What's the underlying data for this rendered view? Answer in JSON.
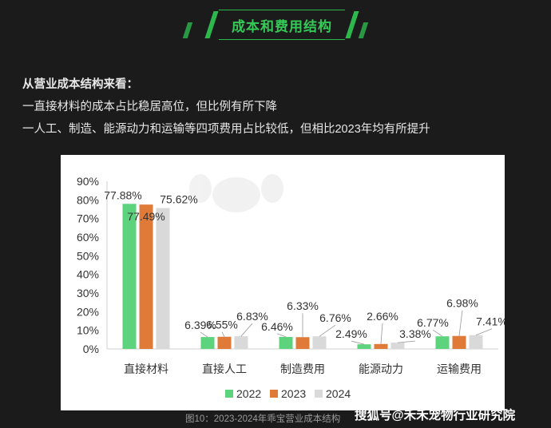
{
  "header": {
    "title": "成本和费用结构"
  },
  "intro": {
    "heading": "从营业成本结构来看：",
    "lines": [
      "一直接材料的成本占比稳居高位，但比例有所下降",
      "一人工、制造、能源动力和运输等四项费用占比较低，但相比2023年均有所提升"
    ]
  },
  "colors": {
    "accent": "#35c957",
    "s2022": "#5cd37c",
    "s2023": "#e07a38",
    "s2024": "#d9d9d9"
  },
  "chart_data": {
    "type": "bar",
    "categories": [
      "直接材料",
      "直接人工",
      "制造费用",
      "能源动力",
      "运输费用"
    ],
    "series": [
      {
        "name": "2022",
        "values": [
          77.88,
          6.39,
          6.46,
          2.49,
          6.77
        ]
      },
      {
        "name": "2023",
        "values": [
          77.49,
          6.55,
          6.33,
          2.66,
          6.98
        ]
      },
      {
        "name": "2024",
        "values": [
          75.62,
          6.83,
          6.76,
          3.38,
          7.41
        ]
      }
    ],
    "labels": [
      [
        "77.88%",
        "77.49%",
        "75.62%"
      ],
      [
        "6.39%",
        "6.55%",
        "6.83%"
      ],
      [
        "6.46%",
        "6.33%",
        "6.76%"
      ],
      [
        "2.49%",
        "2.66%",
        "3.38%"
      ],
      [
        "6.77%",
        "6.98%",
        "7.41%"
      ]
    ],
    "yticks": [
      "0%",
      "10%",
      "20%",
      "30%",
      "40%",
      "50%",
      "60%",
      "70%",
      "80%",
      "90%"
    ],
    "ylim": [
      0,
      90
    ],
    "legend_position": "bottom"
  },
  "caption": "图10：2023-2024年乖宝营业成本结构",
  "watermark": "搜狐号@禾禾宠物行业研究院"
}
